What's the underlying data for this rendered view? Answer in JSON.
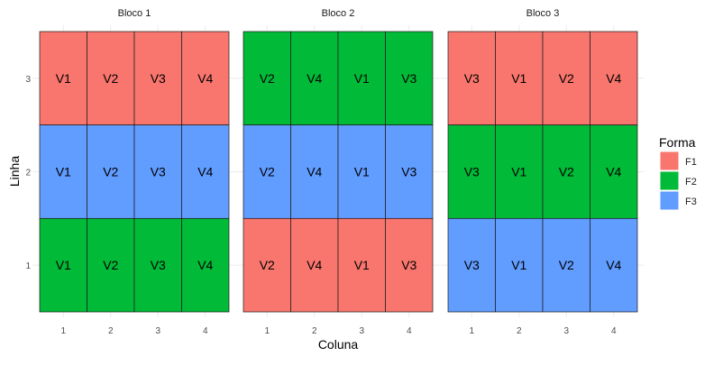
{
  "chart_data": {
    "type": "heatmap",
    "xlabel": "Coluna",
    "ylabel": "Linha",
    "x_ticks": [
      "1",
      "2",
      "3",
      "4"
    ],
    "y_ticks": [
      "1",
      "2",
      "3"
    ],
    "xlim": [
      0.5,
      4.5
    ],
    "ylim": [
      0.5,
      3.5
    ],
    "legend": {
      "title": "Forma",
      "position": "right",
      "entries": [
        {
          "label": "F1",
          "color": "#F8766D"
        },
        {
          "label": "F2",
          "color": "#00BA38"
        },
        {
          "label": "F3",
          "color": "#619CFF"
        }
      ]
    },
    "facets": [
      {
        "title": "Bloco 1",
        "rows": [
          {
            "linha": 3,
            "forma": "F1",
            "labels": [
              "V1",
              "V2",
              "V3",
              "V4"
            ]
          },
          {
            "linha": 2,
            "forma": "F3",
            "labels": [
              "V1",
              "V2",
              "V3",
              "V4"
            ]
          },
          {
            "linha": 1,
            "forma": "F2",
            "labels": [
              "V1",
              "V2",
              "V3",
              "V4"
            ]
          }
        ]
      },
      {
        "title": "Bloco 2",
        "rows": [
          {
            "linha": 3,
            "forma": "F2",
            "labels": [
              "V2",
              "V4",
              "V1",
              "V3"
            ]
          },
          {
            "linha": 2,
            "forma": "F3",
            "labels": [
              "V2",
              "V4",
              "V1",
              "V3"
            ]
          },
          {
            "linha": 1,
            "forma": "F1",
            "labels": [
              "V2",
              "V4",
              "V1",
              "V3"
            ]
          }
        ]
      },
      {
        "title": "Bloco 3",
        "rows": [
          {
            "linha": 3,
            "forma": "F1",
            "labels": [
              "V3",
              "V1",
              "V2",
              "V4"
            ]
          },
          {
            "linha": 2,
            "forma": "F2",
            "labels": [
              "V3",
              "V1",
              "V2",
              "V4"
            ]
          },
          {
            "linha": 1,
            "forma": "F3",
            "labels": [
              "V3",
              "V1",
              "V2",
              "V4"
            ]
          }
        ]
      }
    ]
  }
}
